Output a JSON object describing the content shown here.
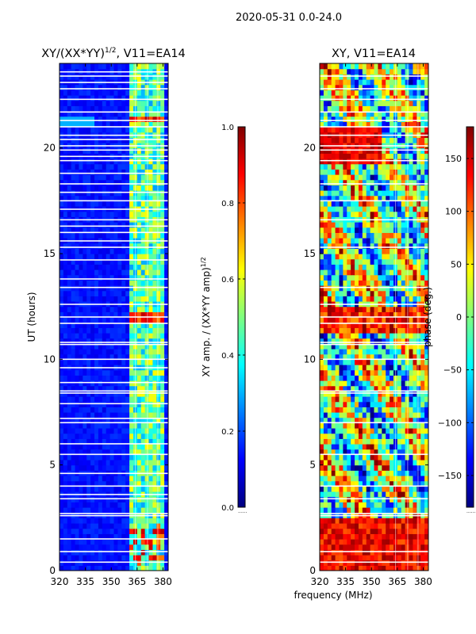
{
  "figure": {
    "suptitle": "2020-05-31 0.0-24.0",
    "xlabel": "frequency (MHz)",
    "ylabel": "UT (hours)"
  },
  "colors": {
    "jet": [
      "#00007f",
      "#0000ff",
      "#007fff",
      "#00ffff",
      "#7fff7f",
      "#ffff00",
      "#ff7f00",
      "#ff0000",
      "#7f0000"
    ],
    "axes_edge": "#000000",
    "gap_line": "#ffffff"
  },
  "chart_data": [
    {
      "type": "heatmap",
      "panel": "left",
      "title_main": "XY/(XX*YY)",
      "title_sup": "1/2",
      "title_tail": ", V11=EA14",
      "xlim": [
        320,
        383
      ],
      "ylim": [
        0,
        24
      ],
      "xticks": [
        320,
        335,
        350,
        365,
        380
      ],
      "yticks": [
        0,
        5,
        10,
        15,
        20
      ],
      "band_mhz": [
        360,
        381
      ],
      "colorbar": {
        "label_main": "XY amp. / (XX*YY amp)",
        "label_sup": "1/2",
        "range": [
          0.0,
          1.0
        ],
        "ticks": [
          0.0,
          0.2,
          0.4,
          0.6,
          0.8,
          1.0
        ],
        "tick_labels": [
          "0.0",
          "0.2",
          "0.4",
          "0.6",
          "0.8",
          "1.0"
        ],
        "under_label": "......"
      },
      "gaps_ut": [
        0.4,
        0.9,
        1.5,
        2.6,
        2.7,
        3.4,
        3.6,
        4.0,
        4.6,
        5.5,
        6.0,
        7.0,
        7.2,
        7.9,
        8.4,
        8.5,
        8.9,
        9.6,
        10.0,
        10.7,
        10.8,
        11.7,
        12.0,
        12.6,
        13.4,
        13.8,
        14.7,
        15.3,
        15.6,
        16.0,
        16.3,
        16.6,
        17.1,
        17.5,
        17.9,
        18.3,
        18.8,
        19.4,
        19.6,
        19.9,
        20.1,
        20.4,
        20.6,
        21.0,
        21.3,
        21.7,
        22.3,
        22.8,
        23.1,
        23.4,
        23.6
      ]
    },
    {
      "type": "heatmap",
      "panel": "right",
      "title": "XY, V11=EA14",
      "xlim": [
        320,
        383
      ],
      "ylim": [
        0,
        24
      ],
      "xticks": [
        320,
        335,
        350,
        365,
        380
      ],
      "yticks": [
        0,
        5,
        10,
        15,
        20
      ],
      "colorbar": {
        "label": "phase (deg.)",
        "range": [
          -180,
          180
        ],
        "ticks": [
          -150,
          -100,
          -50,
          0,
          50,
          100,
          150
        ],
        "tick_labels": [
          "−150",
          "−100",
          "−50",
          "0",
          "50",
          "100",
          "150"
        ],
        "under_label": "......"
      },
      "gaps_ut": [
        0.4,
        0.9,
        2.6,
        2.7,
        3.4,
        4.0,
        5.5,
        7.0,
        8.4,
        8.5,
        10.0,
        10.7,
        10.8,
        11.7,
        12.0,
        12.6,
        13.4,
        15.3,
        16.6,
        17.5,
        18.3,
        19.4,
        19.9,
        20.1,
        20.6,
        21.0,
        21.3,
        21.7,
        22.3,
        22.8,
        23.4
      ]
    }
  ]
}
